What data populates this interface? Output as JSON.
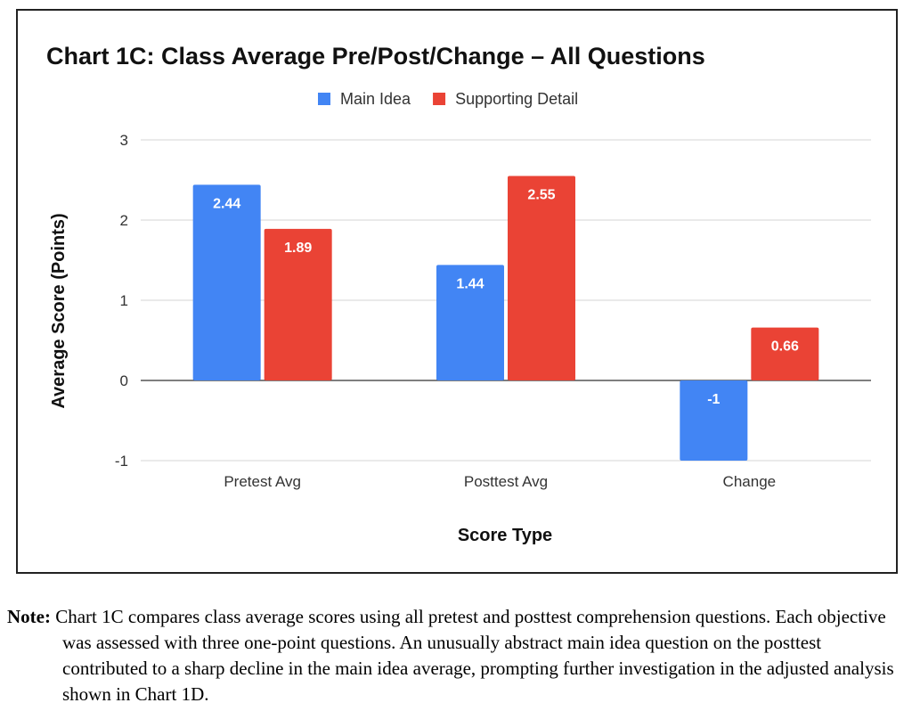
{
  "chart_data": {
    "type": "bar",
    "title": "Chart 1C: Class Average Pre/Post/Change – All Questions",
    "xlabel": "Score Type",
    "ylabel": "Average Score (Points)",
    "categories": [
      "Pretest Avg",
      "Posttest Avg",
      "Change"
    ],
    "series": [
      {
        "name": "Main Idea",
        "color": "#4285f4",
        "values": [
          2.44,
          1.44,
          -1
        ],
        "labels": [
          "2.44",
          "1.44",
          "-1"
        ]
      },
      {
        "name": "Supporting Detail",
        "color": "#ea4335",
        "values": [
          1.89,
          2.55,
          0.66
        ],
        "labels": [
          "1.89",
          "2.55",
          "0.66"
        ]
      }
    ],
    "ylim": [
      -1,
      3
    ],
    "yticks": [
      -1,
      0,
      1,
      2,
      3
    ],
    "grid": true,
    "legend_position": "top"
  },
  "note": {
    "label": "Note:",
    "text": "Chart 1C compares class average scores using all pretest and posttest comprehension questions. Each objective was assessed with three one-point questions. An unusually abstract main idea question on the posttest contributed to a sharp decline in the main idea average, prompting further investigation in the adjusted analysis shown in Chart 1D."
  }
}
